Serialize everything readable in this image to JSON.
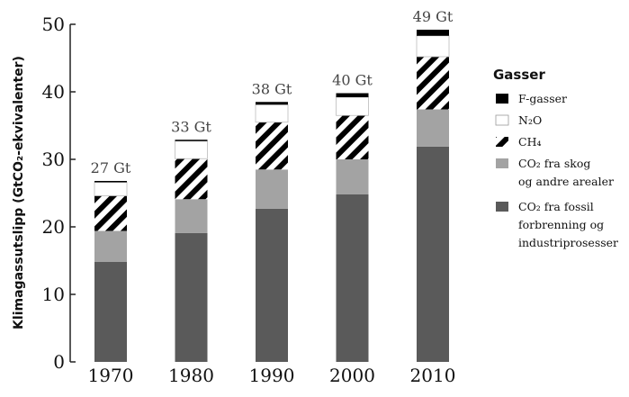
{
  "chart_data": {
    "type": "bar",
    "stacked": true,
    "title": "",
    "xlabel": "",
    "ylabel": "Klimagassutslipp (GtCO₂-ekvivalenter)",
    "ylim": [
      0,
      50
    ],
    "yticks": [
      0,
      10,
      20,
      30,
      40,
      50
    ],
    "categories": [
      "1970",
      "1980",
      "1990",
      "2000",
      "2010"
    ],
    "totals": [
      "27 Gt",
      "33 Gt",
      "38 Gt",
      "40 Gt",
      "49 Gt"
    ],
    "series": [
      {
        "name": "CO₂ fra fossil forbrenning og industriprosesser",
        "lines": [
          "CO₂ fra fossil",
          "forbrenning og",
          "industriprosesser"
        ],
        "color": "#5a5a5a",
        "values": [
          14.8,
          19.1,
          22.7,
          24.8,
          31.9
        ]
      },
      {
        "name": "CO₂ fra skog og andre arealer",
        "lines": [
          "CO₂ fra skog",
          "og andre arealer"
        ],
        "color": "#a3a3a3",
        "values": [
          4.6,
          5.0,
          5.8,
          5.2,
          5.5
        ]
      },
      {
        "name": "CH₄",
        "lines": [
          "CH₄"
        ],
        "color": "hatch",
        "values": [
          5.2,
          6.0,
          7.0,
          6.5,
          7.8
        ]
      },
      {
        "name": "N₂O",
        "lines": [
          "N₂O"
        ],
        "color": "#ffffff",
        "values": [
          2.0,
          2.6,
          2.6,
          2.7,
          3.1
        ]
      },
      {
        "name": "F-gasser",
        "lines": [
          "F-gasser"
        ],
        "color": "#000000",
        "values": [
          0.2,
          0.2,
          0.4,
          0.6,
          0.9
        ]
      }
    ],
    "legend": {
      "title": "Gasser",
      "placement": "right"
    },
    "grid": false
  }
}
